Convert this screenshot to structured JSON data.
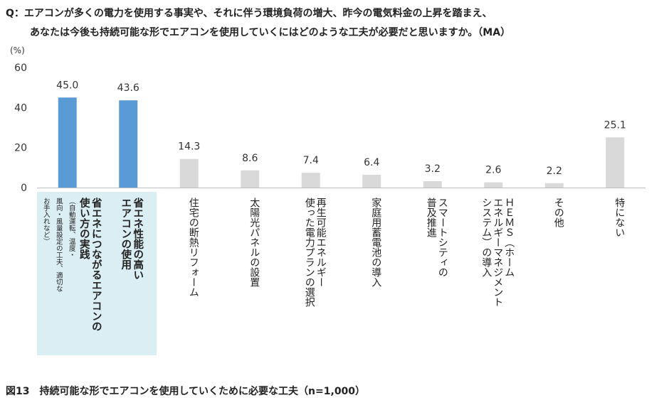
{
  "question": {
    "line1": "Q：エアコンが多くの電力を使用する事実や、それに伴う環境負荷の増大、昨今の電気料金の上昇を踏まえ、",
    "line2": "あなたは今後も持続可能な形でエアコンを使用していくにはどのような工夫が必要だと思いますか。（MA）"
  },
  "figure_caption": "図13　持続可能な形でエアコンを使用していくために必要な工夫（n=1,000）",
  "chart_data": {
    "type": "bar",
    "ylabel": "(%)",
    "ylim": [
      0,
      60
    ],
    "yticks": [
      "0",
      "20",
      "40",
      "60"
    ],
    "grid": false,
    "categories": [
      {
        "lines": [
          "省エネにつながるエアコンの",
          "使い方の実践"
        ],
        "note": [
          "（自動運転、温度・",
          "風向・風量設定の工夫、適切な",
          "お手入れなど）"
        ],
        "highlight": true
      },
      {
        "lines": [
          "省エネ性能の高い",
          "エアコンの使用"
        ],
        "highlight": true
      },
      {
        "lines": [
          "住宅の断熱リフォーム"
        ]
      },
      {
        "lines": [
          "太陽光パネルの設置"
        ]
      },
      {
        "lines": [
          "再生可能エネルギー",
          "使った電力プランの選択"
        ]
      },
      {
        "lines": [
          "家庭用蓄電池の導入"
        ]
      },
      {
        "lines": [
          "スマートシティの",
          "普及推進"
        ]
      },
      {
        "lines": [
          "ＨＥＭＳ（ホーム",
          "エネルギーマネジメント",
          "システム）の導入"
        ]
      },
      {
        "lines": [
          "その他"
        ]
      },
      {
        "lines": [
          "特にない"
        ]
      }
    ],
    "values": [
      45.0,
      43.6,
      14.3,
      8.6,
      7.4,
      6.4,
      3.2,
      2.6,
      2.2,
      25.1
    ],
    "value_labels": [
      "45.0",
      "43.6",
      "14.3",
      "8.6",
      "7.4",
      "6.4",
      "3.2",
      "2.6",
      "2.2",
      "25.1"
    ],
    "colors": {
      "highlight": "#5b9bd5",
      "normal": "#d9d9d9",
      "highlight_bg": "#daeef3"
    }
  }
}
